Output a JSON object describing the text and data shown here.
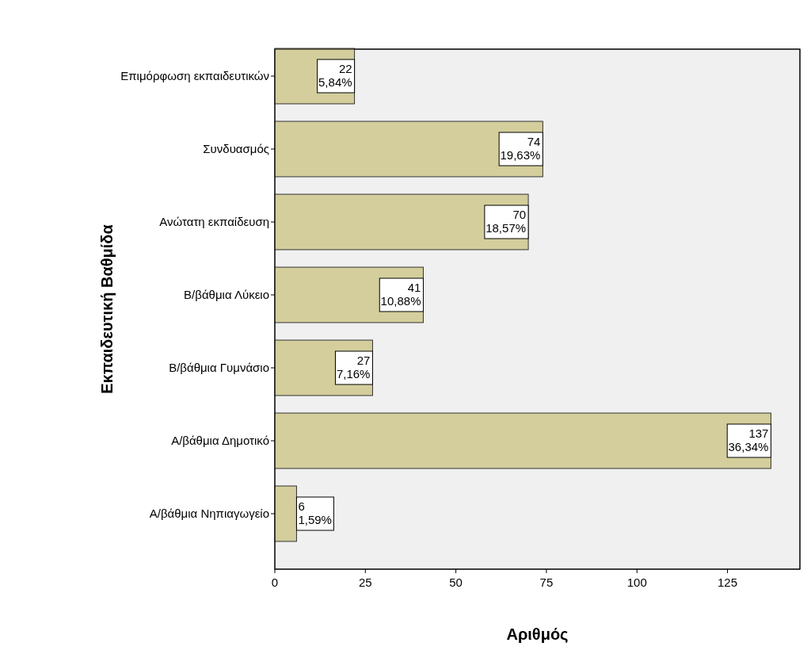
{
  "chart_data": {
    "type": "bar",
    "orientation": "horizontal",
    "xlabel": "Αριθμός",
    "ylabel": "Εκπαιδευτική Βαθμίδα",
    "categories": [
      "Επιμόρφωση εκπαιδευτικών",
      "Συνδυασμός",
      "Ανώτατη εκπαίδευση",
      "Β/βάθμια Λύκειο",
      "Β/βάθμια Γυμνάσιο",
      "Α/βάθμια Δημοτικό",
      "Α/βάθμια Νηπιαγωγείο"
    ],
    "values": [
      22,
      74,
      70,
      41,
      27,
      137,
      6
    ],
    "value_labels": [
      "22\n5,84%",
      "74\n19,63%",
      "70\n18,57%",
      "41\n10,88%",
      "27\n7,16%",
      "137\n36,34%",
      "6\n1,59%"
    ],
    "color": "#d3ce9c",
    "xlim": [
      0,
      145
    ],
    "xticks": [
      0,
      25,
      50,
      75,
      100,
      125
    ],
    "grid": false
  }
}
